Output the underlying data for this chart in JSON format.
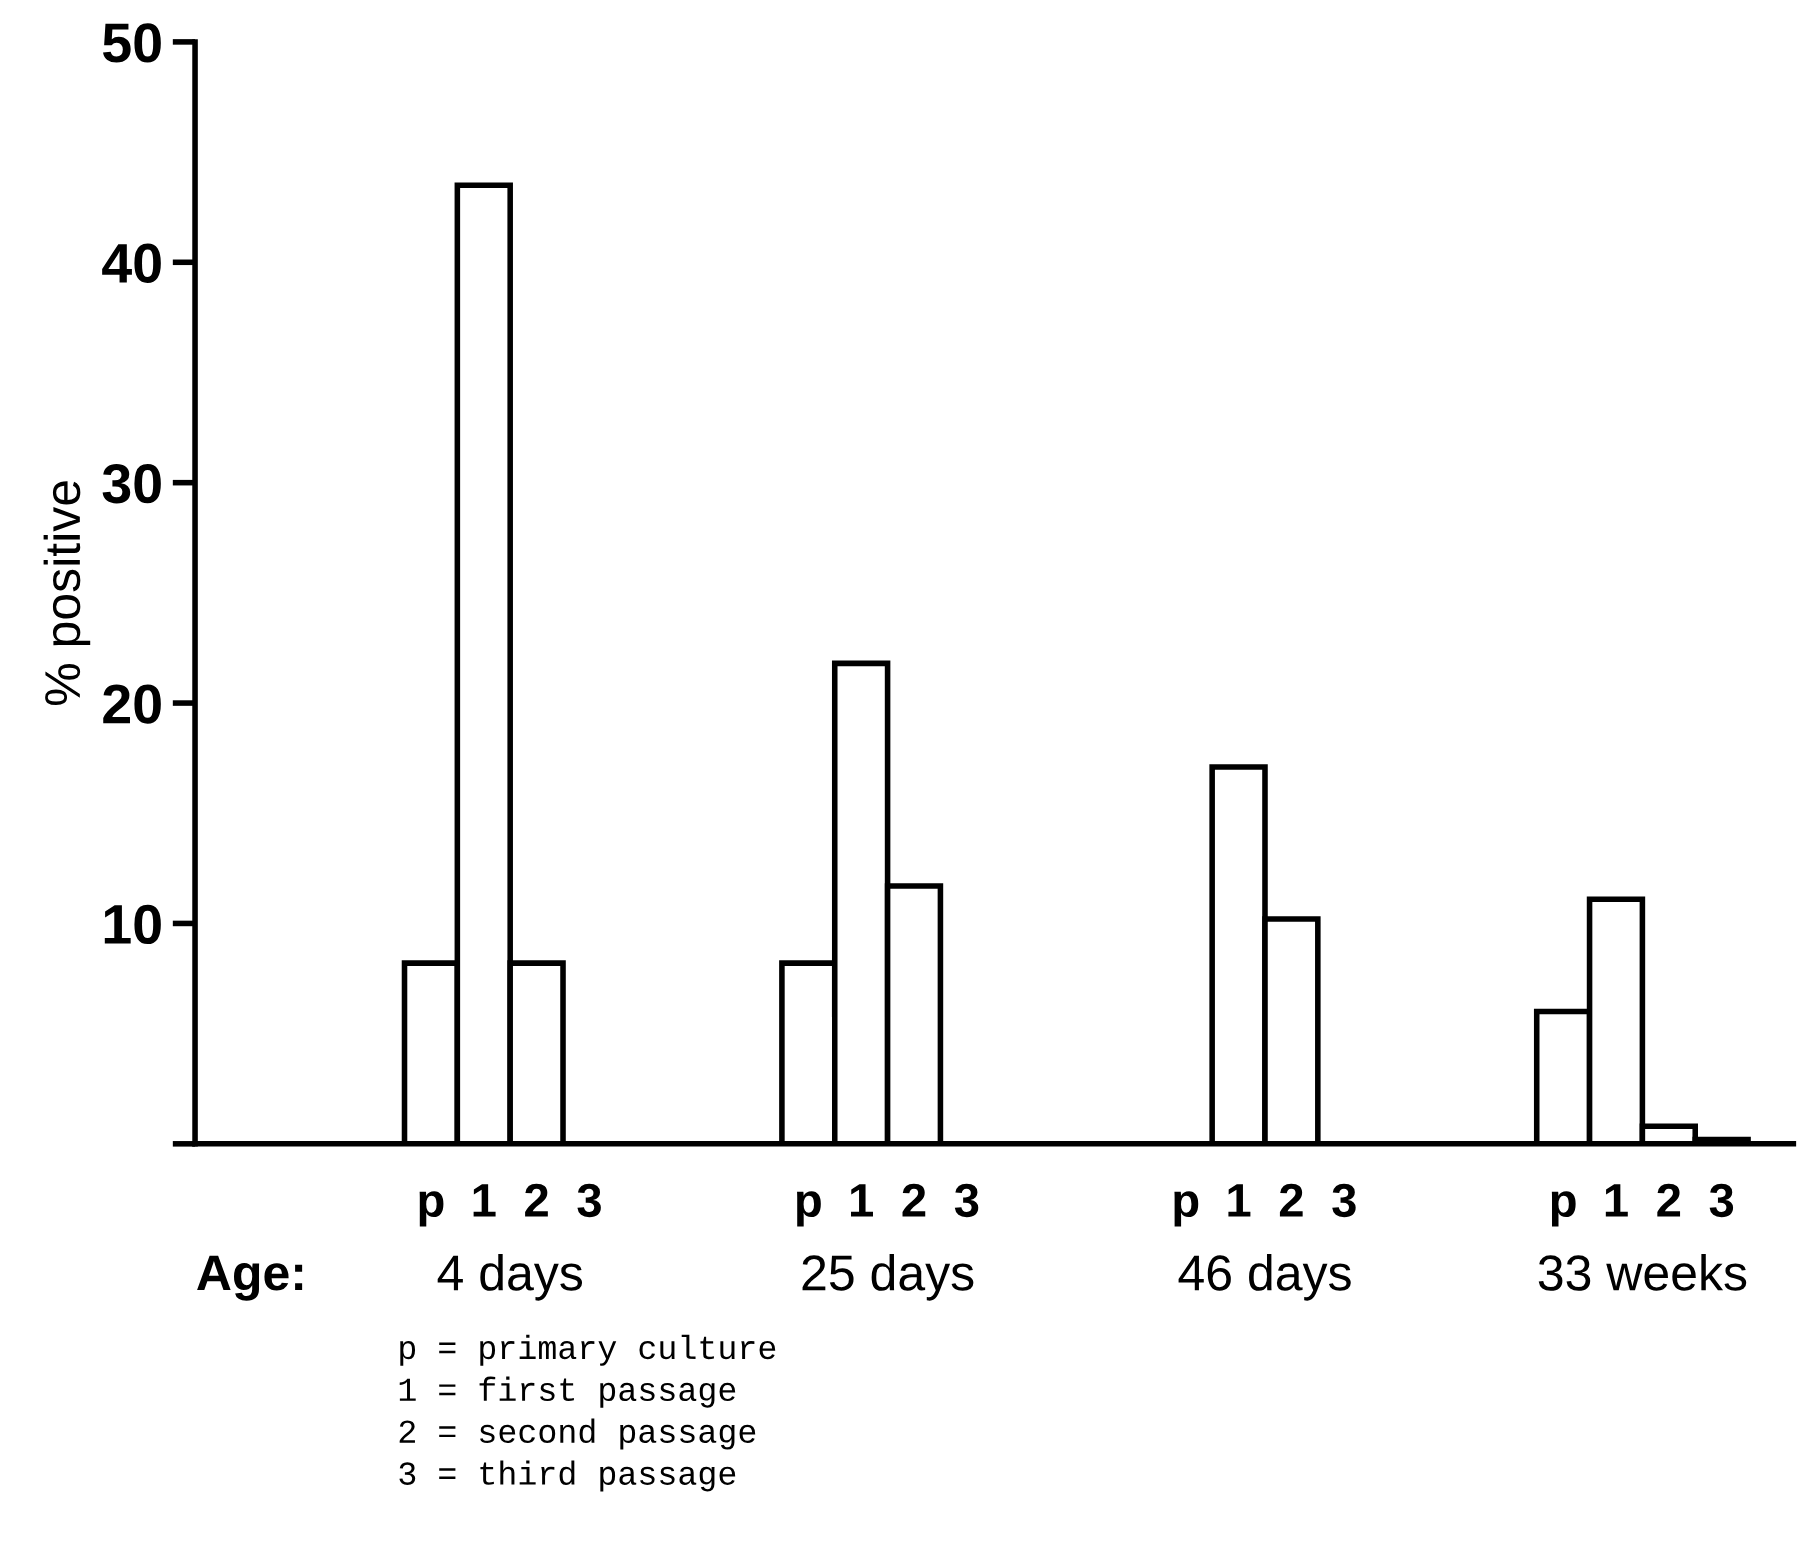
{
  "chart_data": {
    "type": "bar",
    "categories": [
      "4 days",
      "25 days",
      "46 days",
      "33 weeks"
    ],
    "xlabel": "Age:",
    "ylabel": "% positive",
    "series": [
      {
        "name": "p",
        "color": "#ffffff",
        "values": [
          8.2,
          8.2,
          null,
          6.0
        ]
      },
      {
        "name": "1",
        "color": "#ffffff",
        "values": [
          43.5,
          21.8,
          17.1,
          11.1
        ]
      },
      {
        "name": "2",
        "color": "#ffffff",
        "values": [
          8.2,
          11.7,
          10.2,
          0.8
        ]
      },
      {
        "name": "3",
        "color": "#ffffff",
        "values": [
          null,
          null,
          null,
          0.2
        ]
      }
    ],
    "ylim": [
      0,
      50
    ],
    "yticks": [
      {
        "value": 0,
        "label": null
      },
      10,
      20,
      30,
      40,
      50
    ],
    "grid": false,
    "legend": false,
    "annotations": [
      "p = primary culture",
      "1 = first passage",
      "2 = second passage",
      "3 = third passage"
    ]
  }
}
